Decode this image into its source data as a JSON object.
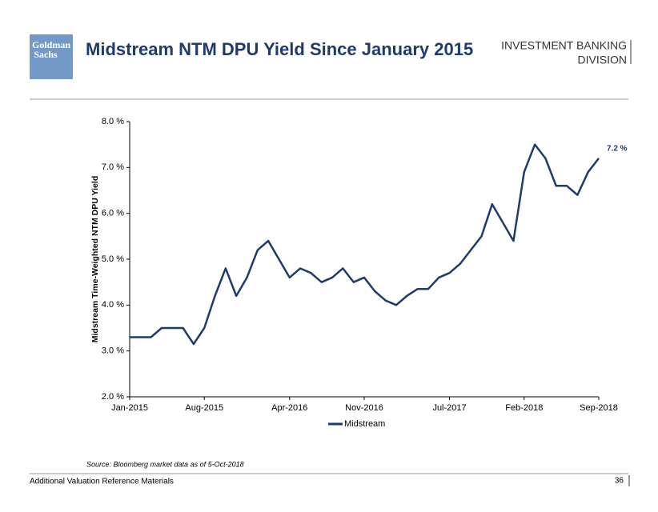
{
  "header": {
    "logo": [
      "Goldman",
      "Sachs"
    ],
    "division": [
      "INVESTMENT BANKING",
      "DIVISION"
    ]
  },
  "chart_data": {
    "type": "line",
    "title": "Midstream NTM DPU Yield Since January 2015",
    "y_label": "Midstream Time-Weighted NTM DPU Yield",
    "x": [
      "2015-01",
      "2015-02",
      "2015-03",
      "2015-04",
      "2015-05",
      "2015-06",
      "2015-07",
      "2015-08",
      "2015-09",
      "2015-10",
      "2015-11",
      "2015-12",
      "2016-01",
      "2016-02",
      "2016-03",
      "2016-04",
      "2016-05",
      "2016-06",
      "2016-07",
      "2016-08",
      "2016-09",
      "2016-10",
      "2016-11",
      "2016-12",
      "2017-01",
      "2017-02",
      "2017-03",
      "2017-04",
      "2017-05",
      "2017-06",
      "2017-07",
      "2017-08",
      "2017-09",
      "2017-10",
      "2017-11",
      "2017-12",
      "2018-01",
      "2018-02",
      "2018-03",
      "2018-04",
      "2018-05",
      "2018-06",
      "2018-07",
      "2018-08",
      "2018-09"
    ],
    "series": [
      {
        "name": "Midstream",
        "color": "#1f3a6e",
        "values": [
          3.3,
          3.3,
          3.3,
          3.5,
          3.5,
          3.5,
          3.15,
          3.5,
          4.2,
          4.8,
          4.2,
          4.6,
          5.2,
          5.4,
          5.0,
          4.6,
          4.8,
          4.7,
          4.5,
          4.6,
          4.8,
          4.5,
          4.6,
          4.3,
          4.1,
          4.0,
          4.2,
          4.35,
          4.35,
          4.6,
          4.7,
          4.9,
          5.2,
          5.5,
          6.2,
          5.8,
          5.4,
          6.9,
          7.5,
          7.2,
          6.6,
          6.6,
          6.4,
          6.9,
          7.2
        ]
      }
    ],
    "annotation": "7.2 %",
    "xlim": [
      "2015-01",
      "2018-09"
    ],
    "xticks": [
      {
        "value": "2015-01",
        "label": "Jan-2015"
      },
      {
        "value": "2015-08",
        "label": "Aug-2015"
      },
      {
        "value": "2016-04",
        "label": "Apr-2016"
      },
      {
        "value": "2016-11",
        "label": "Nov-2016"
      },
      {
        "value": "2017-07",
        "label": "Jul-2017"
      },
      {
        "value": "2018-02",
        "label": "Feb-2018"
      },
      {
        "value": "2018-09",
        "label": "Sep-2018"
      }
    ],
    "ylim": [
      2,
      8
    ],
    "yticks": [
      {
        "value": 2,
        "label": "2.0 %"
      },
      {
        "value": 3,
        "label": "3.0 %"
      },
      {
        "value": 4,
        "label": "4.0 %"
      },
      {
        "value": 5,
        "label": "5.0 %"
      },
      {
        "value": 6,
        "label": "6.0 %"
      },
      {
        "value": 7,
        "label": "7.0 %"
      },
      {
        "value": 8,
        "label": "8.0 %"
      }
    ],
    "legend": "bottom"
  },
  "footer": {
    "source": "Source: Bloomberg market data as of 5-Oct-2018",
    "left": "Additional Valuation Reference Materials",
    "page": "36"
  }
}
